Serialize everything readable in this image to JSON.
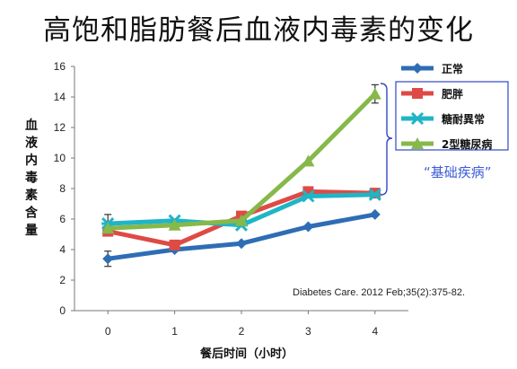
{
  "title": "高饱和脂肪餐后血液内毒素的变化",
  "chart_data": {
    "type": "line",
    "x": [
      0,
      1,
      2,
      3,
      4
    ],
    "xticks": [
      "0",
      "1",
      "2",
      "3",
      "4"
    ],
    "yticks": [
      "0",
      "2",
      "4",
      "6",
      "8",
      "10",
      "12",
      "14",
      "16"
    ],
    "xlabel": "餐后时间（小时）",
    "ylabel": "血液内毒素含量",
    "xlim": [
      -0.5,
      4.5
    ],
    "ylim": [
      0,
      16
    ],
    "grid": false,
    "legend_position": "top-right",
    "series": [
      {
        "name": "正常",
        "color": "#2e6db5",
        "marker": "diamond",
        "values": [
          3.4,
          4.0,
          4.4,
          5.5,
          6.3
        ],
        "err": [
          0.5,
          0,
          0,
          0,
          0
        ]
      },
      {
        "name": "肥胖",
        "color": "#de4a45",
        "marker": "square",
        "values": [
          5.2,
          4.3,
          6.2,
          7.8,
          7.7
        ],
        "err": [
          0,
          0,
          0,
          0,
          0
        ]
      },
      {
        "name": "糖耐異常",
        "color": "#1fb5c7",
        "marker": "x",
        "values": [
          5.7,
          5.9,
          5.6,
          7.5,
          7.6
        ],
        "err": [
          0.6,
          0,
          0,
          0,
          0
        ]
      },
      {
        "name": "2型糖尿病",
        "color": "#86b84a",
        "marker": "triangle",
        "values": [
          5.4,
          5.6,
          5.9,
          9.8,
          14.2
        ],
        "err": [
          0,
          0,
          0,
          0,
          0.6
        ]
      }
    ],
    "annotation": "“基础疾病”",
    "citation": "Diabetes Care. 2012 Feb;35(2):375-82."
  }
}
